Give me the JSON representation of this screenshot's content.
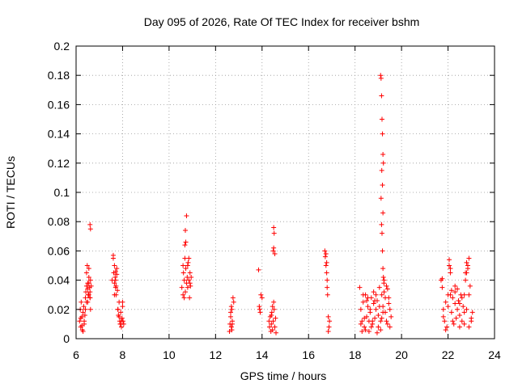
{
  "chart_data": {
    "type": "scatter",
    "title": "Day 095 of 2026, Rate Of TEC Index for receiver bshm",
    "xlabel": "GPS time / hours",
    "ylabel": "ROTI / TECUs",
    "xlim": [
      6,
      24
    ],
    "ylim": [
      0,
      0.2
    ],
    "xticks": [
      "6",
      "8",
      "10",
      "12",
      "14",
      "16",
      "18",
      "20",
      "22",
      "24"
    ],
    "yticks": [
      "0",
      "0.02",
      "0.04",
      "0.06",
      "0.08",
      "0.1",
      "0.12",
      "0.14",
      "0.16",
      "0.18",
      "0.2"
    ],
    "grid": true,
    "marker": "plus",
    "color": "#ff0000",
    "series": [
      {
        "x": [
          6.15,
          6.18,
          6.2,
          6.22,
          6.25,
          6.27,
          6.3,
          6.33,
          6.35,
          6.38,
          6.4,
          6.42,
          6.45,
          6.48,
          6.5,
          6.52,
          6.55,
          6.58,
          6.6,
          6.62,
          6.45,
          6.5,
          6.55,
          6.6,
          6.62,
          6.65,
          6.6,
          6.62,
          6.55,
          6.5,
          6.45,
          6.55,
          6.6,
          6.3,
          6.35,
          6.25,
          6.2,
          6.4
        ],
        "y": [
          0.012,
          0.02,
          0.008,
          0.025,
          0.015,
          0.006,
          0.018,
          0.022,
          0.01,
          0.016,
          0.028,
          0.032,
          0.045,
          0.05,
          0.038,
          0.03,
          0.042,
          0.035,
          0.028,
          0.04,
          0.036,
          0.025,
          0.03,
          0.078,
          0.075,
          0.036,
          0.032,
          0.02,
          0.048,
          0.034,
          0.025,
          0.038,
          0.028,
          0.005,
          0.012,
          0.009,
          0.014,
          0.02
        ]
      },
      {
        "x": [
          7.55,
          7.6,
          7.62,
          7.65,
          7.68,
          7.7,
          7.72,
          7.75,
          7.78,
          7.8,
          7.82,
          7.85,
          7.88,
          7.9,
          7.92,
          7.95,
          7.98,
          8.0,
          8.02,
          8.05,
          7.6,
          7.65,
          7.7,
          7.72,
          7.75,
          7.8,
          7.85,
          7.9,
          8.0,
          7.95,
          7.65,
          7.7
        ],
        "y": [
          0.04,
          0.055,
          0.045,
          0.038,
          0.042,
          0.035,
          0.03,
          0.048,
          0.033,
          0.02,
          0.016,
          0.025,
          0.012,
          0.01,
          0.018,
          0.008,
          0.014,
          0.022,
          0.012,
          0.01,
          0.057,
          0.05,
          0.04,
          0.036,
          0.044,
          0.02,
          0.015,
          0.01,
          0.025,
          0.012,
          0.03,
          0.046
        ]
      },
      {
        "x": [
          10.55,
          10.6,
          10.62,
          10.65,
          10.68,
          10.7,
          10.72,
          10.75,
          10.78,
          10.8,
          10.82,
          10.85,
          10.88,
          10.9,
          10.92,
          10.95,
          10.75,
          10.7,
          10.72,
          10.68,
          10.8,
          10.85,
          10.6,
          10.65,
          10.9
        ],
        "y": [
          0.035,
          0.05,
          0.045,
          0.04,
          0.055,
          0.032,
          0.048,
          0.038,
          0.042,
          0.035,
          0.052,
          0.04,
          0.028,
          0.045,
          0.036,
          0.042,
          0.084,
          0.074,
          0.066,
          0.064,
          0.05,
          0.055,
          0.03,
          0.028,
          0.038
        ]
      },
      {
        "x": [
          12.6,
          12.62,
          12.65,
          12.68,
          12.7,
          12.72,
          12.75,
          12.78,
          12.65,
          12.7,
          12.68,
          12.72
        ],
        "y": [
          0.005,
          0.01,
          0.015,
          0.008,
          0.02,
          0.012,
          0.028,
          0.025,
          0.018,
          0.006,
          0.022,
          0.01
        ]
      },
      {
        "x": [
          13.85,
          13.9,
          13.95,
          14.0,
          13.92,
          13.88,
          14.3,
          14.32,
          14.35,
          14.38,
          14.4,
          14.42,
          14.45,
          14.48,
          14.5,
          14.52,
          14.55,
          14.58,
          14.6,
          14.5,
          14.52,
          14.48,
          14.55,
          14.5,
          14.45,
          14.4
        ],
        "y": [
          0.047,
          0.02,
          0.03,
          0.028,
          0.018,
          0.022,
          0.012,
          0.008,
          0.015,
          0.005,
          0.01,
          0.018,
          0.006,
          0.012,
          0.025,
          0.02,
          0.008,
          0.014,
          0.004,
          0.076,
          0.072,
          0.06,
          0.058,
          0.062,
          0.022,
          0.016
        ]
      },
      {
        "x": [
          16.7,
          16.72,
          16.75,
          16.78,
          16.8,
          16.82,
          16.85,
          16.88,
          16.9,
          16.75,
          16.8,
          16.85,
          16.78
        ],
        "y": [
          0.06,
          0.056,
          0.05,
          0.045,
          0.035,
          0.03,
          0.015,
          0.008,
          0.012,
          0.058,
          0.04,
          0.005,
          0.052
        ]
      },
      {
        "x": [
          18.2,
          18.25,
          18.3,
          18.35,
          18.4,
          18.45,
          18.5,
          18.55,
          18.6,
          18.65,
          18.7,
          18.75,
          18.8,
          18.85,
          18.9,
          18.95,
          19.0,
          19.05,
          19.1,
          19.15,
          19.2,
          19.25,
          19.3,
          19.35,
          19.4,
          19.45,
          19.5,
          19.55,
          18.3,
          18.4,
          18.5,
          18.6,
          18.7,
          18.8,
          18.9,
          19.0,
          19.1,
          19.2,
          19.3,
          19.4,
          19.5,
          18.25,
          18.35,
          18.45,
          18.55,
          18.65,
          18.75,
          18.85,
          18.95,
          19.05,
          19.15,
          19.25,
          19.35,
          19.45,
          19.1,
          19.12,
          19.14,
          19.16,
          19.18,
          19.2,
          19.22,
          19.15,
          19.18,
          19.12,
          19.2,
          19.14,
          19.16,
          19.18,
          19.2,
          19.22,
          19.24
        ],
        "y": [
          0.035,
          0.02,
          0.012,
          0.025,
          0.008,
          0.03,
          0.015,
          0.022,
          0.005,
          0.018,
          0.028,
          0.01,
          0.032,
          0.014,
          0.02,
          0.026,
          0.008,
          0.035,
          0.012,
          0.03,
          0.022,
          0.04,
          0.018,
          0.036,
          0.01,
          0.028,
          0.02,
          0.015,
          0.005,
          0.014,
          0.026,
          0.012,
          0.008,
          0.024,
          0.03,
          0.016,
          0.006,
          0.018,
          0.028,
          0.034,
          0.008,
          0.01,
          0.03,
          0.006,
          0.028,
          0.02,
          0.012,
          0.026,
          0.004,
          0.022,
          0.014,
          0.032,
          0.012,
          0.024,
          0.18,
          0.178,
          0.166,
          0.15,
          0.14,
          0.126,
          0.12,
          0.115,
          0.105,
          0.096,
          0.086,
          0.078,
          0.072,
          0.06,
          0.048,
          0.042,
          0.038
        ]
      },
      {
        "x": [
          21.7,
          21.75,
          21.8,
          21.85,
          21.9,
          21.95,
          22.0,
          22.05,
          22.1,
          22.15,
          22.2,
          22.25,
          22.3,
          22.35,
          22.4,
          22.45,
          22.5,
          22.55,
          22.6,
          22.65,
          22.7,
          22.75,
          22.8,
          22.85,
          22.9,
          22.95,
          23.0,
          23.05,
          21.8,
          21.9,
          22.0,
          22.1,
          22.2,
          22.3,
          22.4,
          22.5,
          22.6,
          22.7,
          22.8,
          22.9,
          23.0,
          22.05,
          22.1,
          22.15,
          22.7,
          22.75,
          22.8,
          22.85,
          22.9,
          21.75,
          22.3,
          22.5
        ],
        "y": [
          0.04,
          0.035,
          0.02,
          0.012,
          0.025,
          0.008,
          0.03,
          0.05,
          0.045,
          0.018,
          0.028,
          0.01,
          0.032,
          0.014,
          0.02,
          0.026,
          0.008,
          0.03,
          0.012,
          0.022,
          0.018,
          0.04,
          0.045,
          0.05,
          0.055,
          0.036,
          0.012,
          0.018,
          0.015,
          0.006,
          0.022,
          0.03,
          0.012,
          0.024,
          0.034,
          0.016,
          0.028,
          0.01,
          0.02,
          0.008,
          0.014,
          0.054,
          0.048,
          0.033,
          0.03,
          0.045,
          0.052,
          0.048,
          0.03,
          0.041,
          0.036,
          0.024
        ]
      }
    ]
  }
}
